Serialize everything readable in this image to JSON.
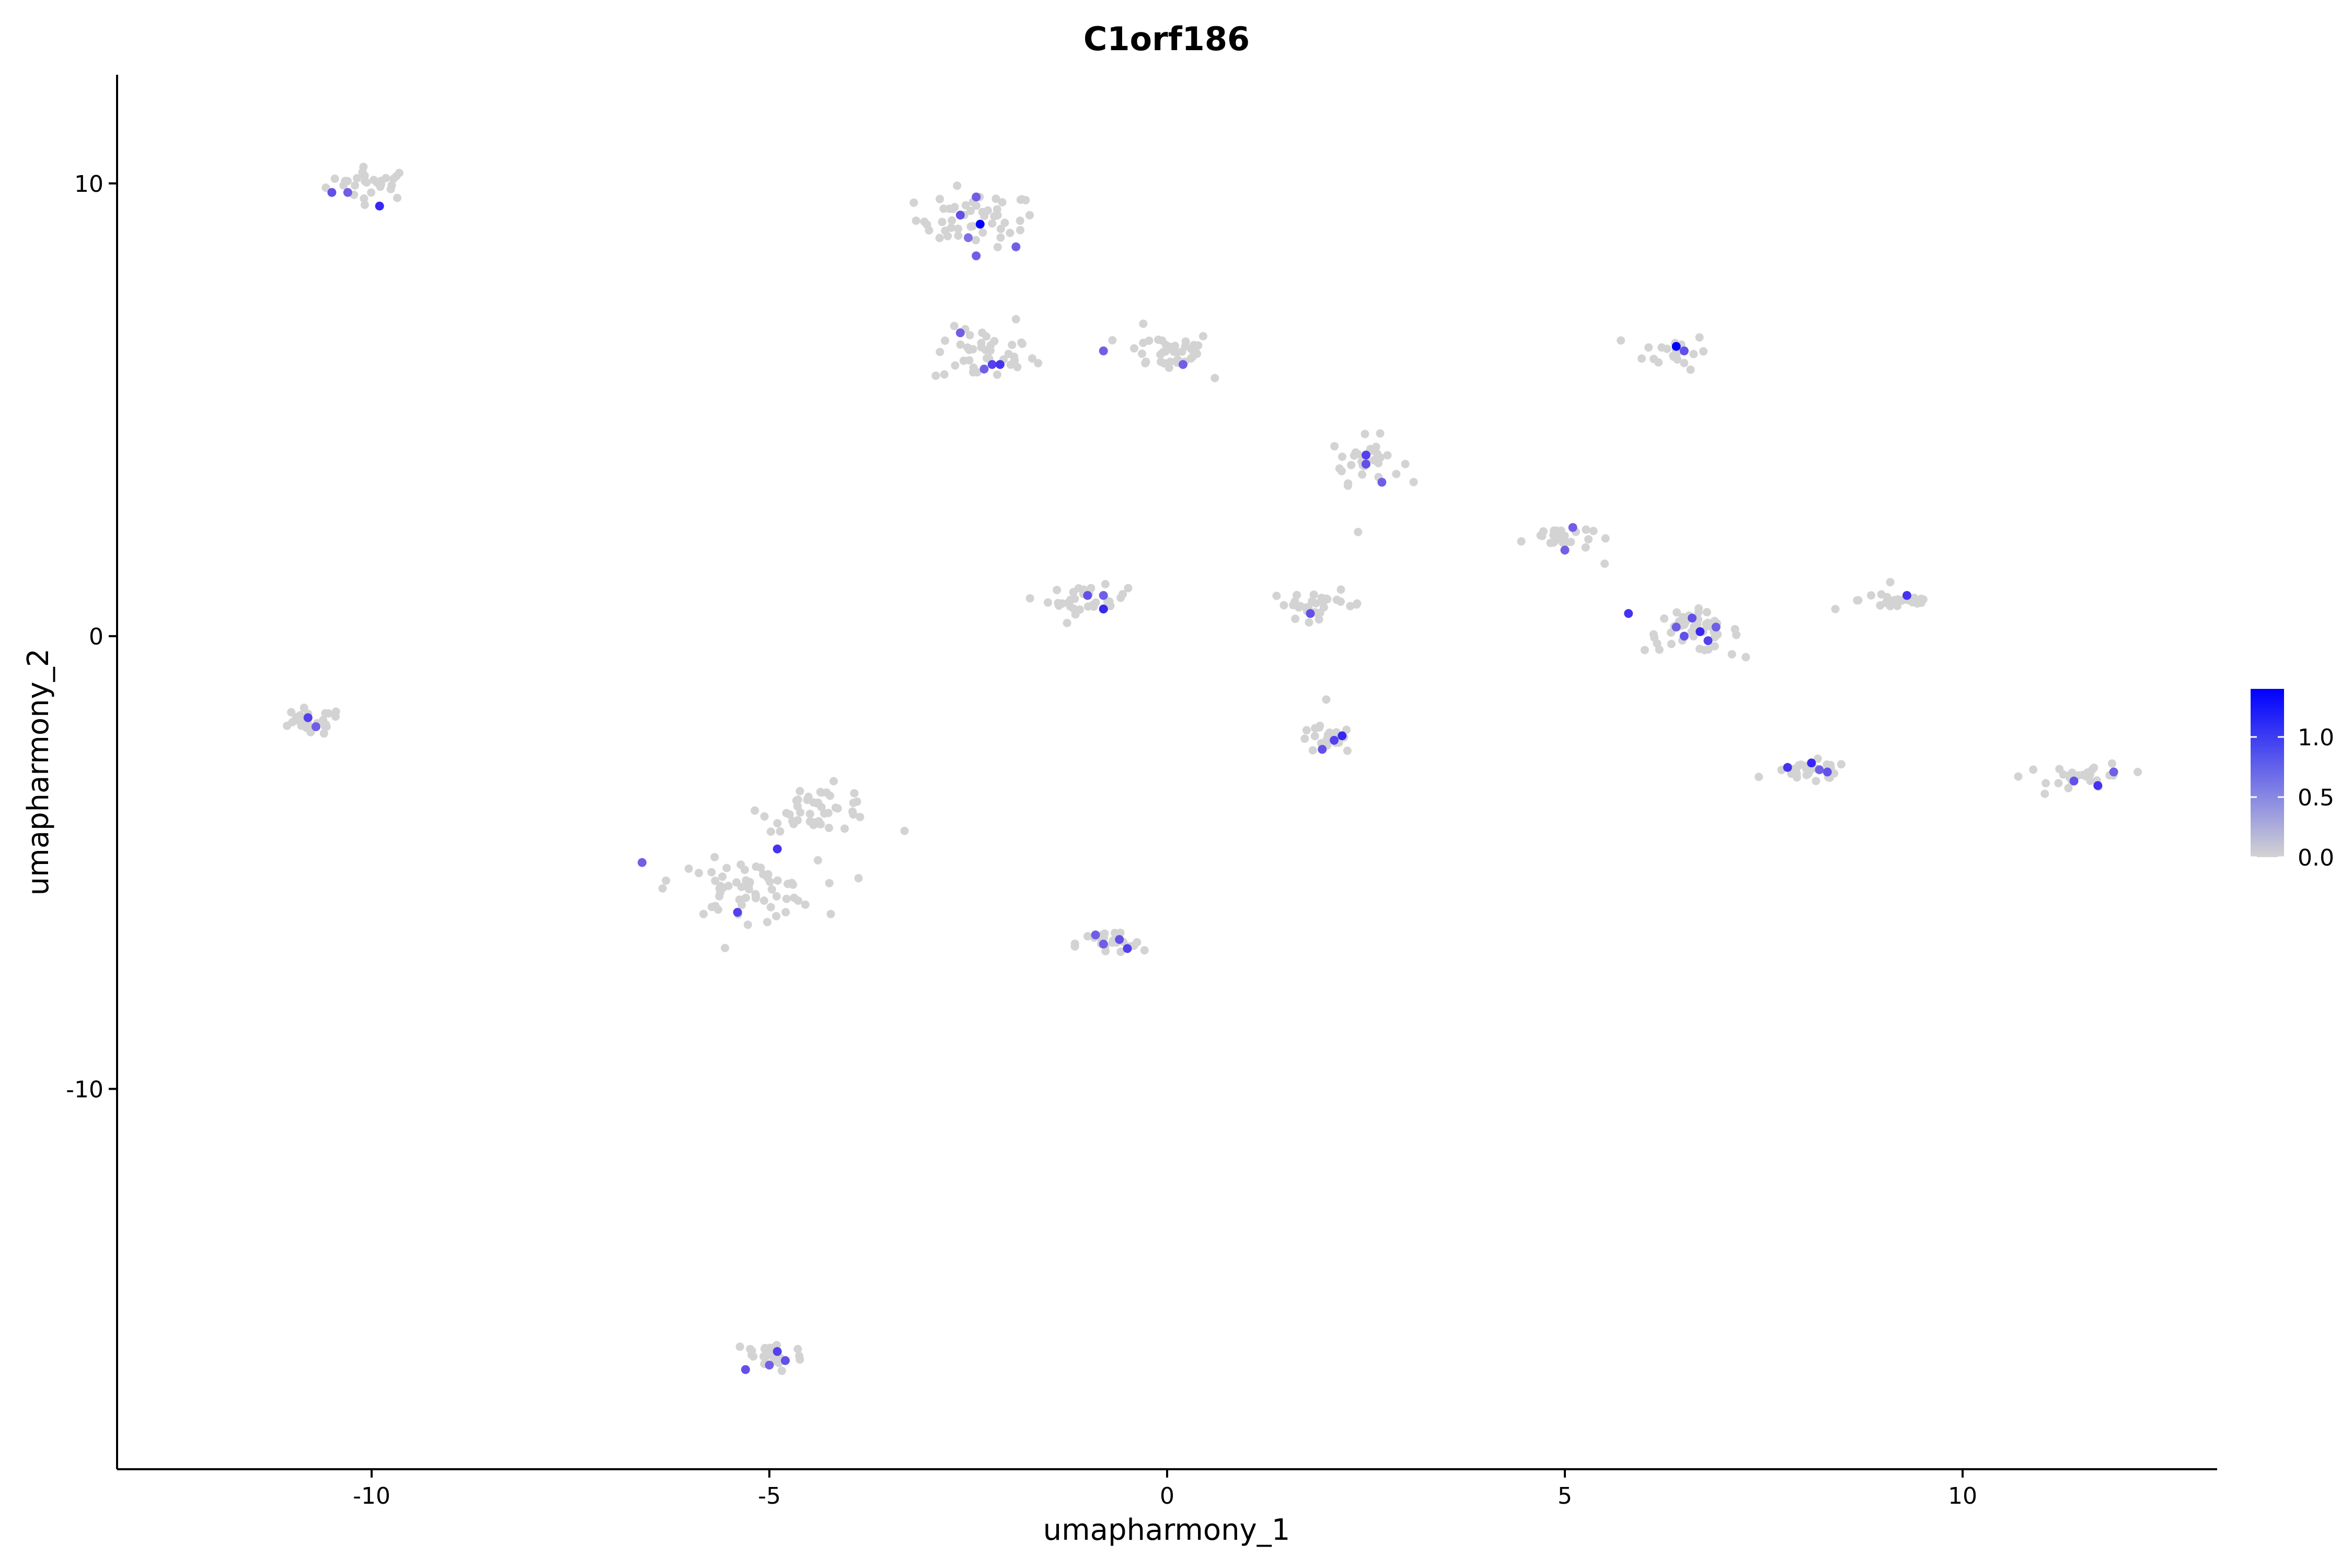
{
  "chart_data": {
    "type": "scatter",
    "title": "C1orf186",
    "xlabel": "umapharmony_1",
    "ylabel": "umapharmony_2",
    "xlim": [
      -13.2,
      13.2
    ],
    "ylim": [
      -18.4,
      12.4
    ],
    "x_ticks": [
      -10,
      -5,
      0,
      5,
      10
    ],
    "x_tick_labels": [
      "-10",
      "-5",
      "0",
      "5",
      "10"
    ],
    "y_ticks": [
      10,
      0,
      -10
    ],
    "y_tick_labels": [
      "10",
      "0",
      "-10"
    ],
    "grid": false,
    "color_scale": {
      "low_color": "#d3d3d3",
      "high_color": "#0000ff",
      "min": 0,
      "max": 1.4,
      "ticks": [
        0,
        0.5,
        1
      ],
      "tick_labels": [
        "0.0",
        "0.5",
        "1.0"
      ],
      "legend_position": "right"
    },
    "clusters": [
      {
        "cx": -10.0,
        "cy": 10.0,
        "sx": 0.28,
        "sy": 0.18,
        "n": 28,
        "expressing": [
          [
            -10.5,
            9.8,
            0.7
          ],
          [
            -10.3,
            9.8,
            0.6
          ],
          [
            -9.9,
            9.5,
            1.0
          ]
        ]
      },
      {
        "cx": -2.4,
        "cy": 9.2,
        "sx": 0.38,
        "sy": 0.3,
        "n": 50,
        "expressing": [
          [
            -2.6,
            9.3,
            0.7
          ],
          [
            -2.4,
            9.7,
            0.6
          ],
          [
            -2.35,
            9.1,
            1.4
          ],
          [
            -2.5,
            8.8,
            0.5
          ],
          [
            -2.4,
            8.4,
            0.6
          ],
          [
            -1.9,
            8.6,
            0.6
          ]
        ]
      },
      {
        "cx": -2.3,
        "cy": 6.2,
        "sx": 0.32,
        "sy": 0.3,
        "n": 40,
        "expressing": [
          [
            -2.6,
            6.7,
            0.6
          ],
          [
            -2.2,
            6.0,
            0.8
          ],
          [
            -2.1,
            6.0,
            0.9
          ],
          [
            -2.3,
            5.9,
            0.6
          ]
        ]
      },
      {
        "cx": 0.0,
        "cy": 6.3,
        "sx": 0.3,
        "sy": 0.22,
        "n": 38,
        "expressing": [
          [
            -0.8,
            6.3,
            0.6
          ],
          [
            0.2,
            6.0,
            0.6
          ]
        ]
      },
      {
        "cx": 6.4,
        "cy": 6.3,
        "sx": 0.2,
        "sy": 0.2,
        "n": 22,
        "expressing": [
          [
            6.4,
            6.4,
            1.4
          ],
          [
            6.5,
            6.3,
            0.7
          ]
        ]
      },
      {
        "cx": 2.5,
        "cy": 3.9,
        "sx": 0.22,
        "sy": 0.25,
        "n": 30,
        "expressing": [
          [
            2.5,
            4.0,
            0.8
          ],
          [
            2.5,
            3.8,
            0.7
          ],
          [
            2.7,
            3.4,
            0.6
          ]
        ]
      },
      {
        "cx": 4.9,
        "cy": 2.2,
        "sx": 0.22,
        "sy": 0.15,
        "n": 25,
        "expressing": [
          [
            5.0,
            1.9,
            0.6
          ],
          [
            5.1,
            2.4,
            0.6
          ]
        ]
      },
      {
        "cx": -1.0,
        "cy": 0.8,
        "sx": 0.25,
        "sy": 0.15,
        "n": 32,
        "expressing": [
          [
            -1.0,
            0.9,
            0.7
          ],
          [
            -0.8,
            0.6,
            1.0
          ],
          [
            -0.8,
            0.9,
            0.6
          ]
        ]
      },
      {
        "cx": 1.9,
        "cy": 0.7,
        "sx": 0.3,
        "sy": 0.15,
        "n": 30,
        "expressing": [
          [
            1.8,
            0.5,
            0.7
          ]
        ]
      },
      {
        "cx": 6.6,
        "cy": 0.1,
        "sx": 0.3,
        "sy": 0.22,
        "n": 45,
        "expressing": [
          [
            5.8,
            0.5,
            0.9
          ],
          [
            6.6,
            0.4,
            0.7
          ],
          [
            6.7,
            0.1,
            1.0
          ],
          [
            6.5,
            0.0,
            0.7
          ],
          [
            6.9,
            0.2,
            0.6
          ],
          [
            6.8,
            -0.1,
            0.8
          ],
          [
            6.4,
            0.2,
            0.6
          ]
        ]
      },
      {
        "cx": 9.2,
        "cy": 0.8,
        "sx": 0.25,
        "sy": 0.12,
        "n": 28,
        "expressing": [
          [
            9.3,
            0.9,
            0.9
          ]
        ]
      },
      {
        "cx": -10.8,
        "cy": -1.9,
        "sx": 0.22,
        "sy": 0.15,
        "n": 28,
        "expressing": [
          [
            -10.8,
            -1.8,
            0.8
          ],
          [
            -10.7,
            -2.0,
            0.6
          ]
        ]
      },
      {
        "cx": 2.0,
        "cy": -2.3,
        "sx": 0.18,
        "sy": 0.15,
        "n": 22,
        "expressing": [
          [
            2.2,
            -2.2,
            1.0
          ],
          [
            1.95,
            -2.5,
            0.7
          ],
          [
            2.1,
            -2.3,
            0.8
          ]
        ]
      },
      {
        "cx": 8.1,
        "cy": -3.0,
        "sx": 0.25,
        "sy": 0.12,
        "n": 25,
        "expressing": [
          [
            7.8,
            -2.9,
            0.9
          ],
          [
            8.1,
            -2.8,
            1.0
          ],
          [
            8.3,
            -3.0,
            0.7
          ],
          [
            8.2,
            -2.95,
            0.6
          ]
        ]
      },
      {
        "cx": 11.6,
        "cy": -3.1,
        "sx": 0.25,
        "sy": 0.15,
        "n": 28,
        "expressing": [
          [
            11.7,
            -3.3,
            0.9
          ],
          [
            11.4,
            -3.2,
            0.7
          ],
          [
            11.9,
            -3.0,
            0.6
          ]
        ]
      },
      {
        "cx": -4.4,
        "cy": -3.8,
        "sx": 0.35,
        "sy": 0.25,
        "n": 45,
        "expressing": []
      },
      {
        "cx": -5.3,
        "cy": -5.6,
        "sx": 0.45,
        "sy": 0.32,
        "n": 60,
        "expressing": [
          [
            -6.6,
            -5.0,
            0.6
          ],
          [
            -4.9,
            -4.7,
            0.9
          ],
          [
            -5.4,
            -6.1,
            0.8
          ]
        ]
      },
      {
        "cx": -0.7,
        "cy": -6.8,
        "sx": 0.22,
        "sy": 0.15,
        "n": 25,
        "expressing": [
          [
            -0.9,
            -6.6,
            0.6
          ],
          [
            -0.6,
            -6.7,
            0.7
          ],
          [
            -0.5,
            -6.9,
            0.8
          ],
          [
            -0.8,
            -6.8,
            0.6
          ]
        ]
      },
      {
        "cx": -5.0,
        "cy": -15.9,
        "sx": 0.22,
        "sy": 0.18,
        "n": 30,
        "expressing": [
          [
            -5.3,
            -16.2,
            0.7
          ],
          [
            -4.9,
            -15.8,
            0.8
          ],
          [
            -4.8,
            -16.0,
            0.7
          ],
          [
            -5.0,
            -16.1,
            0.6
          ]
        ]
      }
    ],
    "outliers": [
      [
        -3.3,
        -4.3,
        0
      ],
      [
        0.6,
        5.7,
        0
      ],
      [
        2.4,
        2.3,
        0
      ],
      [
        5.5,
        1.6,
        0
      ],
      [
        7.1,
        -0.4,
        0
      ],
      [
        8.4,
        0.6,
        0
      ],
      [
        10.7,
        -3.1,
        0
      ],
      [
        2.0,
        -1.4,
        0
      ],
      [
        -6.3,
        -5.4,
        0
      ],
      [
        -0.3,
        6.9,
        0
      ],
      [
        -1.9,
        7.0,
        0
      ]
    ]
  }
}
